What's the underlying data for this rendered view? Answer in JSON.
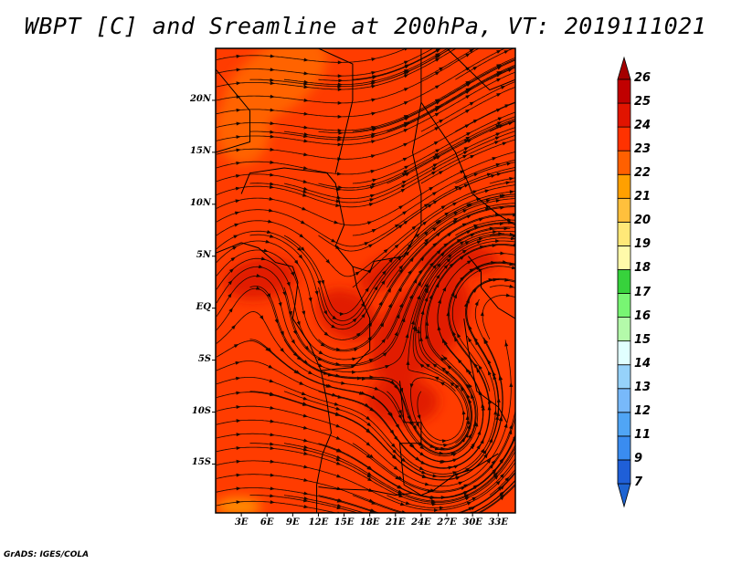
{
  "title": "WBPT [C] and Sreamline at 200hPa, VT: 2019111021",
  "footer": "GrADS: IGES/COLA",
  "map": {
    "lat_labels": [
      "20N",
      "15N",
      "10N",
      "5N",
      "EQ",
      "5S",
      "10S",
      "15S"
    ],
    "lat_values": [
      20,
      15,
      10,
      5,
      0,
      -5,
      -10,
      -15
    ],
    "lon_labels": [
      "3E",
      "6E",
      "9E",
      "12E",
      "15E",
      "18E",
      "21E",
      "24E",
      "27E",
      "30E",
      "33E"
    ],
    "lon_values": [
      3,
      6,
      9,
      12,
      15,
      18,
      21,
      24,
      27,
      30,
      33
    ],
    "lon_range": [
      0,
      35
    ],
    "lat_range": [
      -19.7,
      25
    ]
  },
  "colorbar": {
    "labels": [
      "7",
      "9",
      "11",
      "12",
      "13",
      "14",
      "15",
      "16",
      "17",
      "18",
      "19",
      "20",
      "21",
      "22",
      "23",
      "24",
      "25",
      "26"
    ],
    "colors": [
      "#1f5fd8",
      "#3a8cf0",
      "#50a5f5",
      "#78b9fa",
      "#96d2fa",
      "#e1ffff",
      "#b4faaa",
      "#78f573",
      "#37d23c",
      "#fffaaa",
      "#ffe878",
      "#ffc03c",
      "#ffa000",
      "#ff6000",
      "#ff3200",
      "#e11400",
      "#c00000"
    ],
    "below_color": "#1e64d2",
    "above_color": "#a50000"
  }
}
